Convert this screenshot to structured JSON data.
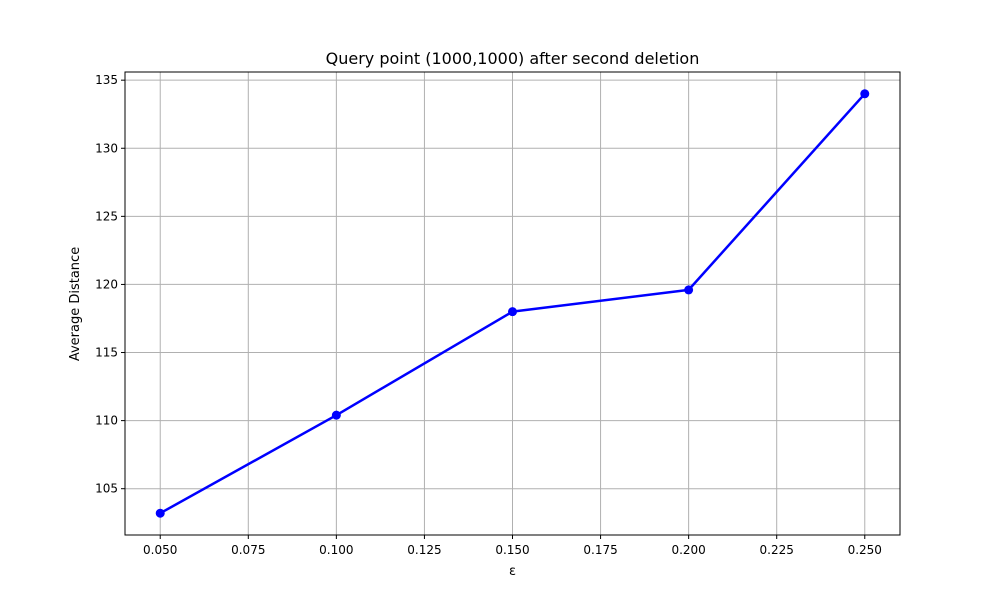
{
  "chart_data": {
    "type": "line",
    "title": "Query point (1000,1000) after second deletion",
    "xlabel": "ε",
    "ylabel": "Average Distance",
    "x": [
      0.05,
      0.1,
      0.15,
      0.2,
      0.25
    ],
    "series": [
      {
        "values": [
          103.2,
          110.4,
          118.0,
          119.6,
          134.0
        ],
        "color": "#0000ff",
        "marker": "circle"
      }
    ],
    "xlim": [
      0.04,
      0.26
    ],
    "ylim": [
      101.6,
      135.6
    ],
    "xticks": [
      0.05,
      0.075,
      0.1,
      0.125,
      0.15,
      0.175,
      0.2,
      0.225,
      0.25
    ],
    "xtick_labels": [
      "0.050",
      "0.075",
      "0.100",
      "0.125",
      "0.150",
      "0.175",
      "0.200",
      "0.225",
      "0.250"
    ],
    "yticks": [
      105,
      110,
      115,
      120,
      125,
      130,
      135
    ],
    "ytick_labels": [
      "105",
      "110",
      "115",
      "120",
      "125",
      "130",
      "135"
    ],
    "grid": true,
    "grid_color": "#b0b0b0"
  }
}
